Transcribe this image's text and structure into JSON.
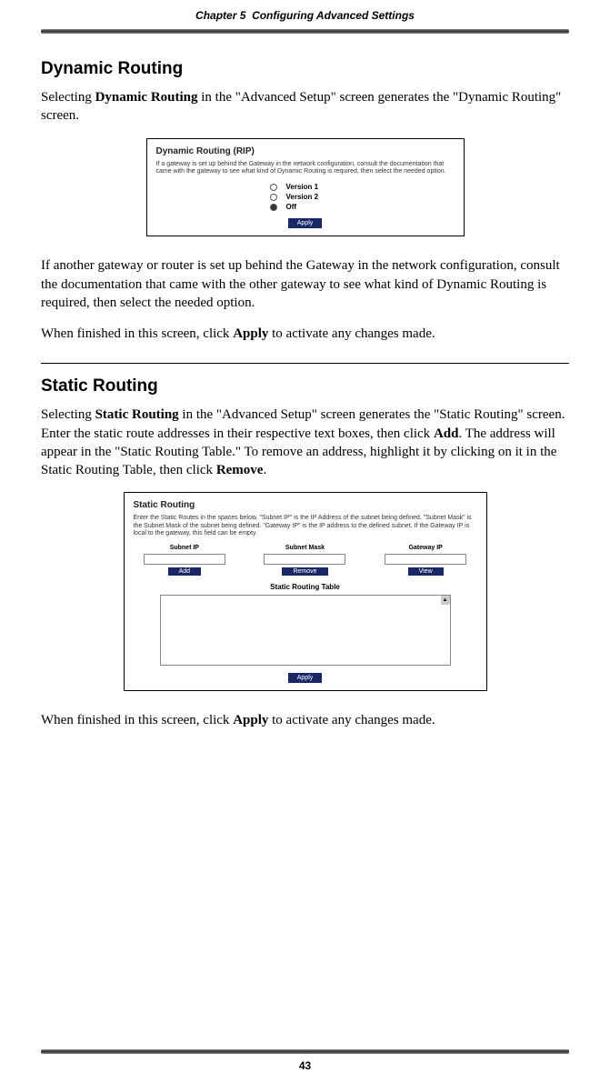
{
  "header": {
    "chapter": "Chapter 5",
    "title": "Configuring Advanced Settings"
  },
  "section1": {
    "heading": "Dynamic Routing",
    "p1_a": "Selecting ",
    "p1_b": "Dynamic Routing",
    "p1_c": " in the \"Advanced Setup\" screen generates the \"Dynamic Routing\" screen.",
    "p2": "If another gateway or router is set up behind the Gateway in the network configuration, consult the documentation that came with the other gateway to see what kind of Dynamic Routing is required, then select the needed option.",
    "p3_a": "When finished in this screen, click ",
    "p3_b": "Apply",
    "p3_c": " to activate any changes made."
  },
  "screenshot1": {
    "title": "Dynamic Routing (RIP)",
    "desc": "If a gateway is set up behind the Gateway in the network configuration, consult the documentation that came with the gateway to see what kind of Dynamic Routing is required, then select the needed option.",
    "opt1": "Version 1",
    "opt2": "Version 2",
    "opt3": "Off",
    "apply": "Apply"
  },
  "section2": {
    "heading": "Static Routing",
    "p1_a": "Selecting ",
    "p1_b": "Static Routing",
    "p1_c": " in the \"Advanced Setup\" screen generates the \"Static Routing\" screen. Enter the static route addresses in their respective text boxes, then click ",
    "p1_d": "Add",
    "p1_e": ". The address will appear in the \"Static Routing Table.\" To remove an address, highlight it by clicking on it in the Static Routing Table, then click ",
    "p1_f": "Remove",
    "p1_g": ".",
    "p2_a": "When finished in this screen, click ",
    "p2_b": "Apply",
    "p2_c": " to activate any changes made."
  },
  "screenshot2": {
    "title": "Static Routing",
    "desc": "Enter the Static Routes in the spaces below. \"Subnet IP\" is the IP Address of the subnet being defined. \"Subnet Mask\" is the Subnet Mask of the subnet being defined. \"Gateway IP\" is the IP address to the defined subnet. If the Gateway IP is local to the gateway, this field can be empty.",
    "col1": "Subnet IP",
    "col2": "Subnet Mask",
    "col3": "Gateway IP",
    "btn_add": "Add",
    "btn_remove": "Remove",
    "btn_view": "View",
    "table_label": "Static Routing Table",
    "apply": "Apply"
  },
  "page_number": "43"
}
